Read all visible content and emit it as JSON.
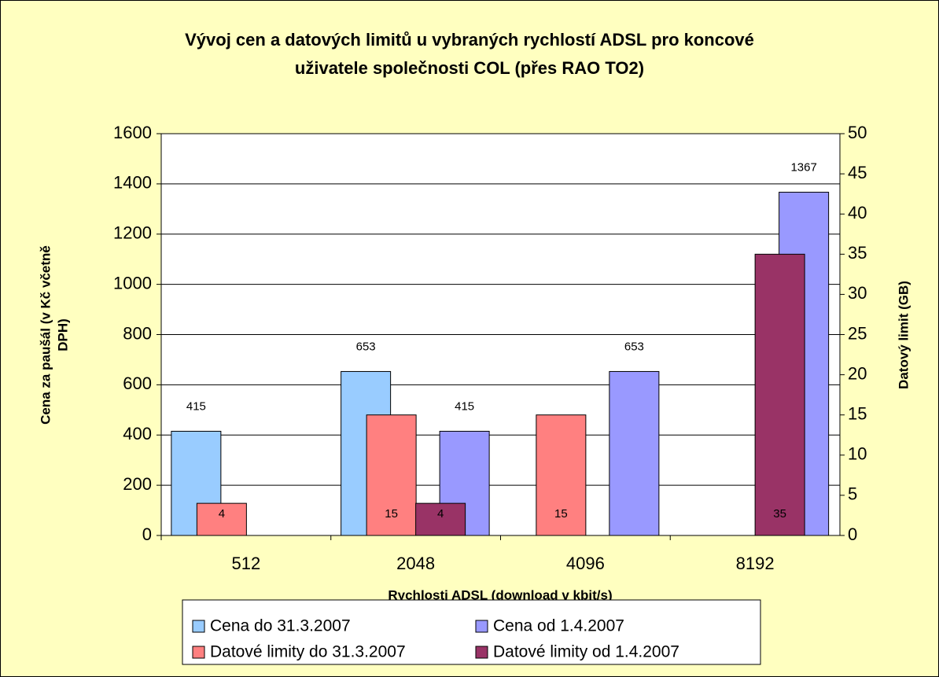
{
  "chart_data": {
    "type": "bar",
    "title": [
      "Vývoj cen a datových limitů u vybraných rychlostí ADSL pro koncové",
      "uživatele společnosti COL (přes RAO TO2)"
    ],
    "x_label": "Rychlosti ADSL (download v kbit/s)",
    "y_label": [
      "Cena za paušál (v Kč včetně",
      "DPH)"
    ],
    "y2_label": "Datový limit (GB)",
    "categories": [
      "512",
      "2048",
      "4096",
      "8192"
    ],
    "series": [
      {
        "name": "Cena do 31.3.2007",
        "color": "#99ccff",
        "values": [
          415,
          653,
          null,
          null
        ]
      },
      {
        "name": "Cena od 1.4.2007",
        "color": "#9999ff",
        "values": [
          null,
          415,
          653,
          1367
        ]
      },
      {
        "name": "Datové limity do 31.3.2007",
        "color": "#ff8080",
        "axis": "y2",
        "values": [
          4,
          15,
          15,
          null
        ]
      },
      {
        "name": "Datové limity od 1.4.2007",
        "color": "#993366",
        "axis": "y2",
        "values": [
          null,
          4,
          null,
          35
        ]
      }
    ],
    "ylim": [
      0,
      1600
    ],
    "yticks": [
      0,
      200,
      400,
      600,
      800,
      1000,
      1200,
      1400,
      1600
    ],
    "y2lim": [
      0,
      50
    ],
    "y2ticks": [
      0,
      5,
      10,
      15,
      20,
      25,
      30,
      35,
      40,
      45,
      50
    ],
    "grid": true,
    "legend": "bottom"
  }
}
